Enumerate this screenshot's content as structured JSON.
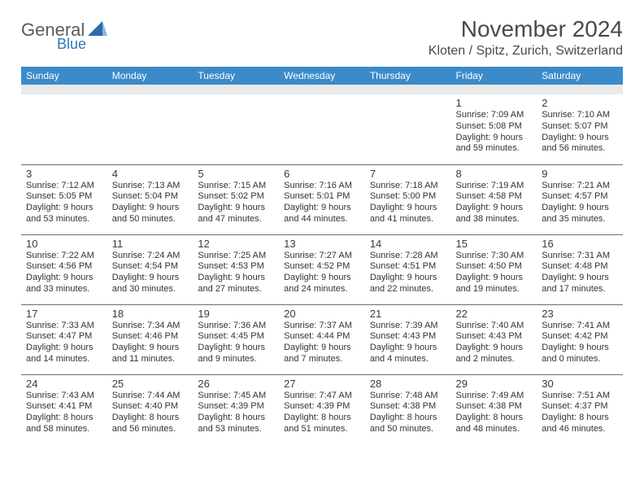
{
  "logo": {
    "general": "General",
    "blue": "Blue"
  },
  "title": "November 2024",
  "location": "Kloten / Spitz, Zurich, Switzerland",
  "theme": {
    "header_bg": "#3b8bca",
    "header_text": "#ffffff",
    "spacer_bg": "#e9e9e9",
    "cell_border": "#6c6c6c",
    "text_color": "#333333",
    "logo_blue": "#2f77bb",
    "title_color": "#4a4a4a"
  },
  "columns": [
    "Sunday",
    "Monday",
    "Tuesday",
    "Wednesday",
    "Thursday",
    "Friday",
    "Saturday"
  ],
  "weeks": [
    [
      null,
      null,
      null,
      null,
      null,
      {
        "n": "1",
        "sr": "Sunrise: 7:09 AM",
        "ss": "Sunset: 5:08 PM",
        "d1": "Daylight: 9 hours",
        "d2": "and 59 minutes."
      },
      {
        "n": "2",
        "sr": "Sunrise: 7:10 AM",
        "ss": "Sunset: 5:07 PM",
        "d1": "Daylight: 9 hours",
        "d2": "and 56 minutes."
      }
    ],
    [
      {
        "n": "3",
        "sr": "Sunrise: 7:12 AM",
        "ss": "Sunset: 5:05 PM",
        "d1": "Daylight: 9 hours",
        "d2": "and 53 minutes."
      },
      {
        "n": "4",
        "sr": "Sunrise: 7:13 AM",
        "ss": "Sunset: 5:04 PM",
        "d1": "Daylight: 9 hours",
        "d2": "and 50 minutes."
      },
      {
        "n": "5",
        "sr": "Sunrise: 7:15 AM",
        "ss": "Sunset: 5:02 PM",
        "d1": "Daylight: 9 hours",
        "d2": "and 47 minutes."
      },
      {
        "n": "6",
        "sr": "Sunrise: 7:16 AM",
        "ss": "Sunset: 5:01 PM",
        "d1": "Daylight: 9 hours",
        "d2": "and 44 minutes."
      },
      {
        "n": "7",
        "sr": "Sunrise: 7:18 AM",
        "ss": "Sunset: 5:00 PM",
        "d1": "Daylight: 9 hours",
        "d2": "and 41 minutes."
      },
      {
        "n": "8",
        "sr": "Sunrise: 7:19 AM",
        "ss": "Sunset: 4:58 PM",
        "d1": "Daylight: 9 hours",
        "d2": "and 38 minutes."
      },
      {
        "n": "9",
        "sr": "Sunrise: 7:21 AM",
        "ss": "Sunset: 4:57 PM",
        "d1": "Daylight: 9 hours",
        "d2": "and 35 minutes."
      }
    ],
    [
      {
        "n": "10",
        "sr": "Sunrise: 7:22 AM",
        "ss": "Sunset: 4:56 PM",
        "d1": "Daylight: 9 hours",
        "d2": "and 33 minutes."
      },
      {
        "n": "11",
        "sr": "Sunrise: 7:24 AM",
        "ss": "Sunset: 4:54 PM",
        "d1": "Daylight: 9 hours",
        "d2": "and 30 minutes."
      },
      {
        "n": "12",
        "sr": "Sunrise: 7:25 AM",
        "ss": "Sunset: 4:53 PM",
        "d1": "Daylight: 9 hours",
        "d2": "and 27 minutes."
      },
      {
        "n": "13",
        "sr": "Sunrise: 7:27 AM",
        "ss": "Sunset: 4:52 PM",
        "d1": "Daylight: 9 hours",
        "d2": "and 24 minutes."
      },
      {
        "n": "14",
        "sr": "Sunrise: 7:28 AM",
        "ss": "Sunset: 4:51 PM",
        "d1": "Daylight: 9 hours",
        "d2": "and 22 minutes."
      },
      {
        "n": "15",
        "sr": "Sunrise: 7:30 AM",
        "ss": "Sunset: 4:50 PM",
        "d1": "Daylight: 9 hours",
        "d2": "and 19 minutes."
      },
      {
        "n": "16",
        "sr": "Sunrise: 7:31 AM",
        "ss": "Sunset: 4:48 PM",
        "d1": "Daylight: 9 hours",
        "d2": "and 17 minutes."
      }
    ],
    [
      {
        "n": "17",
        "sr": "Sunrise: 7:33 AM",
        "ss": "Sunset: 4:47 PM",
        "d1": "Daylight: 9 hours",
        "d2": "and 14 minutes."
      },
      {
        "n": "18",
        "sr": "Sunrise: 7:34 AM",
        "ss": "Sunset: 4:46 PM",
        "d1": "Daylight: 9 hours",
        "d2": "and 11 minutes."
      },
      {
        "n": "19",
        "sr": "Sunrise: 7:36 AM",
        "ss": "Sunset: 4:45 PM",
        "d1": "Daylight: 9 hours",
        "d2": "and 9 minutes."
      },
      {
        "n": "20",
        "sr": "Sunrise: 7:37 AM",
        "ss": "Sunset: 4:44 PM",
        "d1": "Daylight: 9 hours",
        "d2": "and 7 minutes."
      },
      {
        "n": "21",
        "sr": "Sunrise: 7:39 AM",
        "ss": "Sunset: 4:43 PM",
        "d1": "Daylight: 9 hours",
        "d2": "and 4 minutes."
      },
      {
        "n": "22",
        "sr": "Sunrise: 7:40 AM",
        "ss": "Sunset: 4:43 PM",
        "d1": "Daylight: 9 hours",
        "d2": "and 2 minutes."
      },
      {
        "n": "23",
        "sr": "Sunrise: 7:41 AM",
        "ss": "Sunset: 4:42 PM",
        "d1": "Daylight: 9 hours",
        "d2": "and 0 minutes."
      }
    ],
    [
      {
        "n": "24",
        "sr": "Sunrise: 7:43 AM",
        "ss": "Sunset: 4:41 PM",
        "d1": "Daylight: 8 hours",
        "d2": "and 58 minutes."
      },
      {
        "n": "25",
        "sr": "Sunrise: 7:44 AM",
        "ss": "Sunset: 4:40 PM",
        "d1": "Daylight: 8 hours",
        "d2": "and 56 minutes."
      },
      {
        "n": "26",
        "sr": "Sunrise: 7:45 AM",
        "ss": "Sunset: 4:39 PM",
        "d1": "Daylight: 8 hours",
        "d2": "and 53 minutes."
      },
      {
        "n": "27",
        "sr": "Sunrise: 7:47 AM",
        "ss": "Sunset: 4:39 PM",
        "d1": "Daylight: 8 hours",
        "d2": "and 51 minutes."
      },
      {
        "n": "28",
        "sr": "Sunrise: 7:48 AM",
        "ss": "Sunset: 4:38 PM",
        "d1": "Daylight: 8 hours",
        "d2": "and 50 minutes."
      },
      {
        "n": "29",
        "sr": "Sunrise: 7:49 AM",
        "ss": "Sunset: 4:38 PM",
        "d1": "Daylight: 8 hours",
        "d2": "and 48 minutes."
      },
      {
        "n": "30",
        "sr": "Sunrise: 7:51 AM",
        "ss": "Sunset: 4:37 PM",
        "d1": "Daylight: 8 hours",
        "d2": "and 46 minutes."
      }
    ]
  ]
}
